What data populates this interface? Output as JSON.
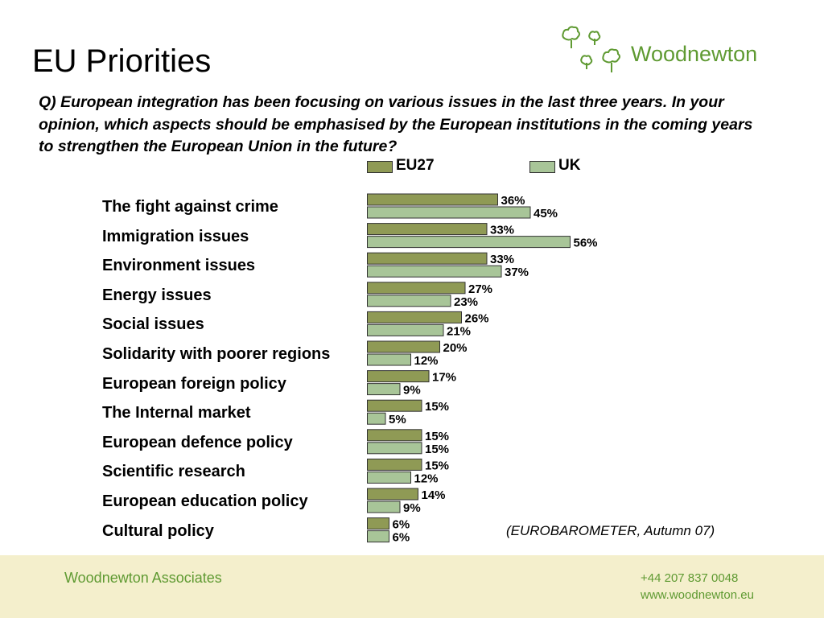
{
  "page": {
    "title": "EU Priorities",
    "question": "Q) European integration has been focusing on various issues in the last three years. In your opinion, which aspects should be emphasised by the European institutions in the coming years to strengthen the European Union in the future?",
    "source": "(EUROBAROMETER, Autumn 07)"
  },
  "logo": {
    "name": "Woodnewton",
    "icon": "tree-cluster-icon"
  },
  "footer": {
    "company": "Woodnewton Associates",
    "phone": "+44 207 837 0048",
    "website": "www.woodnewton.eu"
  },
  "colors": {
    "eu27": "#8f9a55",
    "uk": "#a8c598",
    "brand_green": "#5f9a32",
    "footer_bg": "#f4efcc"
  },
  "chart_data": {
    "type": "bar",
    "orientation": "horizontal",
    "value_suffix": "%",
    "categories": [
      "The fight against crime",
      "Immigration issues",
      "Environment issues",
      "Energy issues",
      "Social issues",
      "Solidarity with poorer regions",
      "European foreign policy",
      "The Internal market",
      "European defence policy",
      "Scientific research",
      "European education policy",
      "Cultural policy"
    ],
    "series": [
      {
        "name": "EU27",
        "values": [
          36,
          33,
          33,
          27,
          26,
          20,
          17,
          15,
          15,
          15,
          14,
          6
        ]
      },
      {
        "name": "UK",
        "values": [
          45,
          56,
          37,
          23,
          21,
          12,
          9,
          5,
          15,
          12,
          9,
          6
        ]
      }
    ],
    "legend_position": "top",
    "grid": false
  }
}
